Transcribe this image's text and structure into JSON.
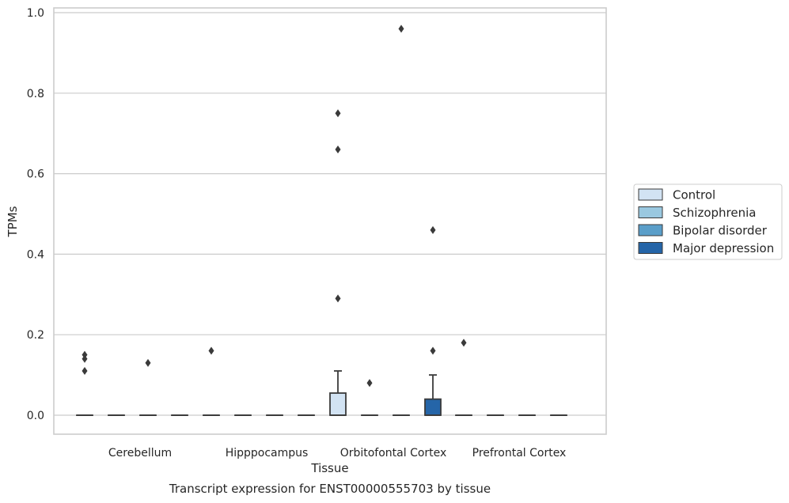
{
  "chart_data": {
    "type": "boxplot",
    "title": "",
    "xlabel": "Tissue",
    "ylabel": "TPMs",
    "caption": "Transcript expression for ENST00000555703 by tissue",
    "ylim": [
      -0.045,
      1.01
    ],
    "yticks": [
      0.0,
      0.2,
      0.4,
      0.6,
      0.8,
      1.0
    ],
    "ytick_labels": [
      "0.0",
      "0.2",
      "0.4",
      "0.6",
      "0.8",
      "1.0"
    ],
    "grid": true,
    "legend_position": "right",
    "categories": [
      "Cerebellum",
      "Hipppocampus",
      "Orbitofontal Cortex",
      "Prefrontal Cortex"
    ],
    "series": [
      {
        "name": "Control",
        "color": "#d2e3f3",
        "boxes": [
          {
            "q1": 0,
            "median": 0,
            "q3": 0,
            "whisker_low": 0,
            "whisker_high": 0,
            "outliers": [
              0.15,
              0.14,
              0.11
            ]
          },
          {
            "q1": 0,
            "median": 0,
            "q3": 0,
            "whisker_low": 0,
            "whisker_high": 0,
            "outliers": [
              0.16
            ]
          },
          {
            "q1": 0,
            "median": 0,
            "q3": 0.055,
            "whisker_low": 0,
            "whisker_high": 0.11,
            "outliers": [
              0.75,
              0.66,
              0.29
            ]
          },
          {
            "q1": 0,
            "median": 0,
            "q3": 0,
            "whisker_low": 0,
            "whisker_high": 0,
            "outliers": [
              0.18
            ]
          }
        ]
      },
      {
        "name": "Schizophrenia",
        "color": "#9ac8e0",
        "boxes": [
          {
            "q1": 0,
            "median": 0,
            "q3": 0,
            "whisker_low": 0,
            "whisker_high": 0,
            "outliers": []
          },
          {
            "q1": 0,
            "median": 0,
            "q3": 0,
            "whisker_low": 0,
            "whisker_high": 0,
            "outliers": []
          },
          {
            "q1": 0,
            "median": 0,
            "q3": 0,
            "whisker_low": 0,
            "whisker_high": 0,
            "outliers": [
              0.08
            ]
          },
          {
            "q1": 0,
            "median": 0,
            "q3": 0,
            "whisker_low": 0,
            "whisker_high": 0,
            "outliers": []
          }
        ]
      },
      {
        "name": "Bipolar disorder",
        "color": "#5a9ec9",
        "boxes": [
          {
            "q1": 0,
            "median": 0,
            "q3": 0,
            "whisker_low": 0,
            "whisker_high": 0,
            "outliers": [
              0.13
            ]
          },
          {
            "q1": 0,
            "median": 0,
            "q3": 0,
            "whisker_low": 0,
            "whisker_high": 0,
            "outliers": []
          },
          {
            "q1": 0,
            "median": 0,
            "q3": 0,
            "whisker_low": 0,
            "whisker_high": 0,
            "outliers": [
              0.96
            ]
          },
          {
            "q1": 0,
            "median": 0,
            "q3": 0,
            "whisker_low": 0,
            "whisker_high": 0,
            "outliers": []
          }
        ]
      },
      {
        "name": "Major depression",
        "color": "#2565a8",
        "boxes": [
          {
            "q1": 0,
            "median": 0,
            "q3": 0,
            "whisker_low": 0,
            "whisker_high": 0,
            "outliers": []
          },
          {
            "q1": 0,
            "median": 0,
            "q3": 0,
            "whisker_low": 0,
            "whisker_high": 0,
            "outliers": []
          },
          {
            "q1": 0,
            "median": 0,
            "q3": 0.04,
            "whisker_low": 0,
            "whisker_high": 0.1,
            "outliers": [
              0.46,
              0.16
            ]
          },
          {
            "q1": 0,
            "median": 0,
            "q3": 0,
            "whisker_low": 0,
            "whisker_high": 0,
            "outliers": []
          }
        ]
      }
    ]
  }
}
